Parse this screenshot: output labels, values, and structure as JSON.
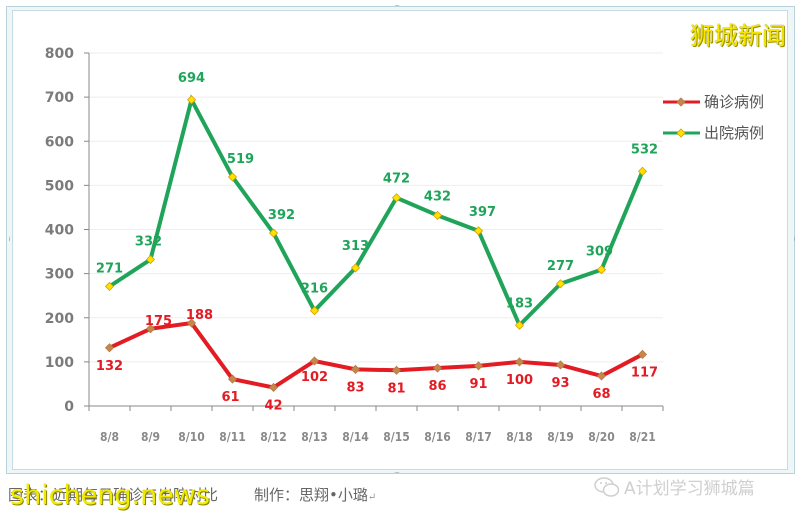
{
  "chart_data": {
    "type": "line",
    "title": "",
    "xlabel": "",
    "ylabel": "",
    "ylim": [
      0,
      800
    ],
    "yticks": [
      0,
      100,
      200,
      300,
      400,
      500,
      600,
      700,
      800
    ],
    "grid": true,
    "legend_position": "right",
    "categories": [
      "8/8",
      "8/9",
      "8/10",
      "8/11",
      "8/12",
      "8/13",
      "8/14",
      "8/15",
      "8/16",
      "8/17",
      "8/18",
      "8/19",
      "8/20",
      "8/21"
    ],
    "series": [
      {
        "name": "确诊病例",
        "color": "#e31b23",
        "marker_color": "#c8874a",
        "values": [
          132,
          175,
          188,
          61,
          42,
          102,
          83,
          81,
          86,
          91,
          100,
          93,
          68,
          117
        ]
      },
      {
        "name": "出院病例",
        "color": "#1fa45a",
        "marker_color": "#ffe000",
        "values": [
          271,
          332,
          694,
          519,
          392,
          216,
          313,
          472,
          432,
          397,
          183,
          277,
          309,
          532
        ]
      }
    ]
  },
  "watermark": {
    "title": "狮城新闻",
    "site": "shicheng.news",
    "wechat": "A计划学习狮城篇"
  },
  "caption": {
    "text": "图表：近期每日确诊与出院对比",
    "credit": "制作：思翔•小璐",
    "return_mark": "↵"
  },
  "colors": {
    "confirmed": "#e31b23",
    "discharged": "#1fa45a",
    "axis": "#7b7b7b",
    "grid": "#eeeeee"
  }
}
